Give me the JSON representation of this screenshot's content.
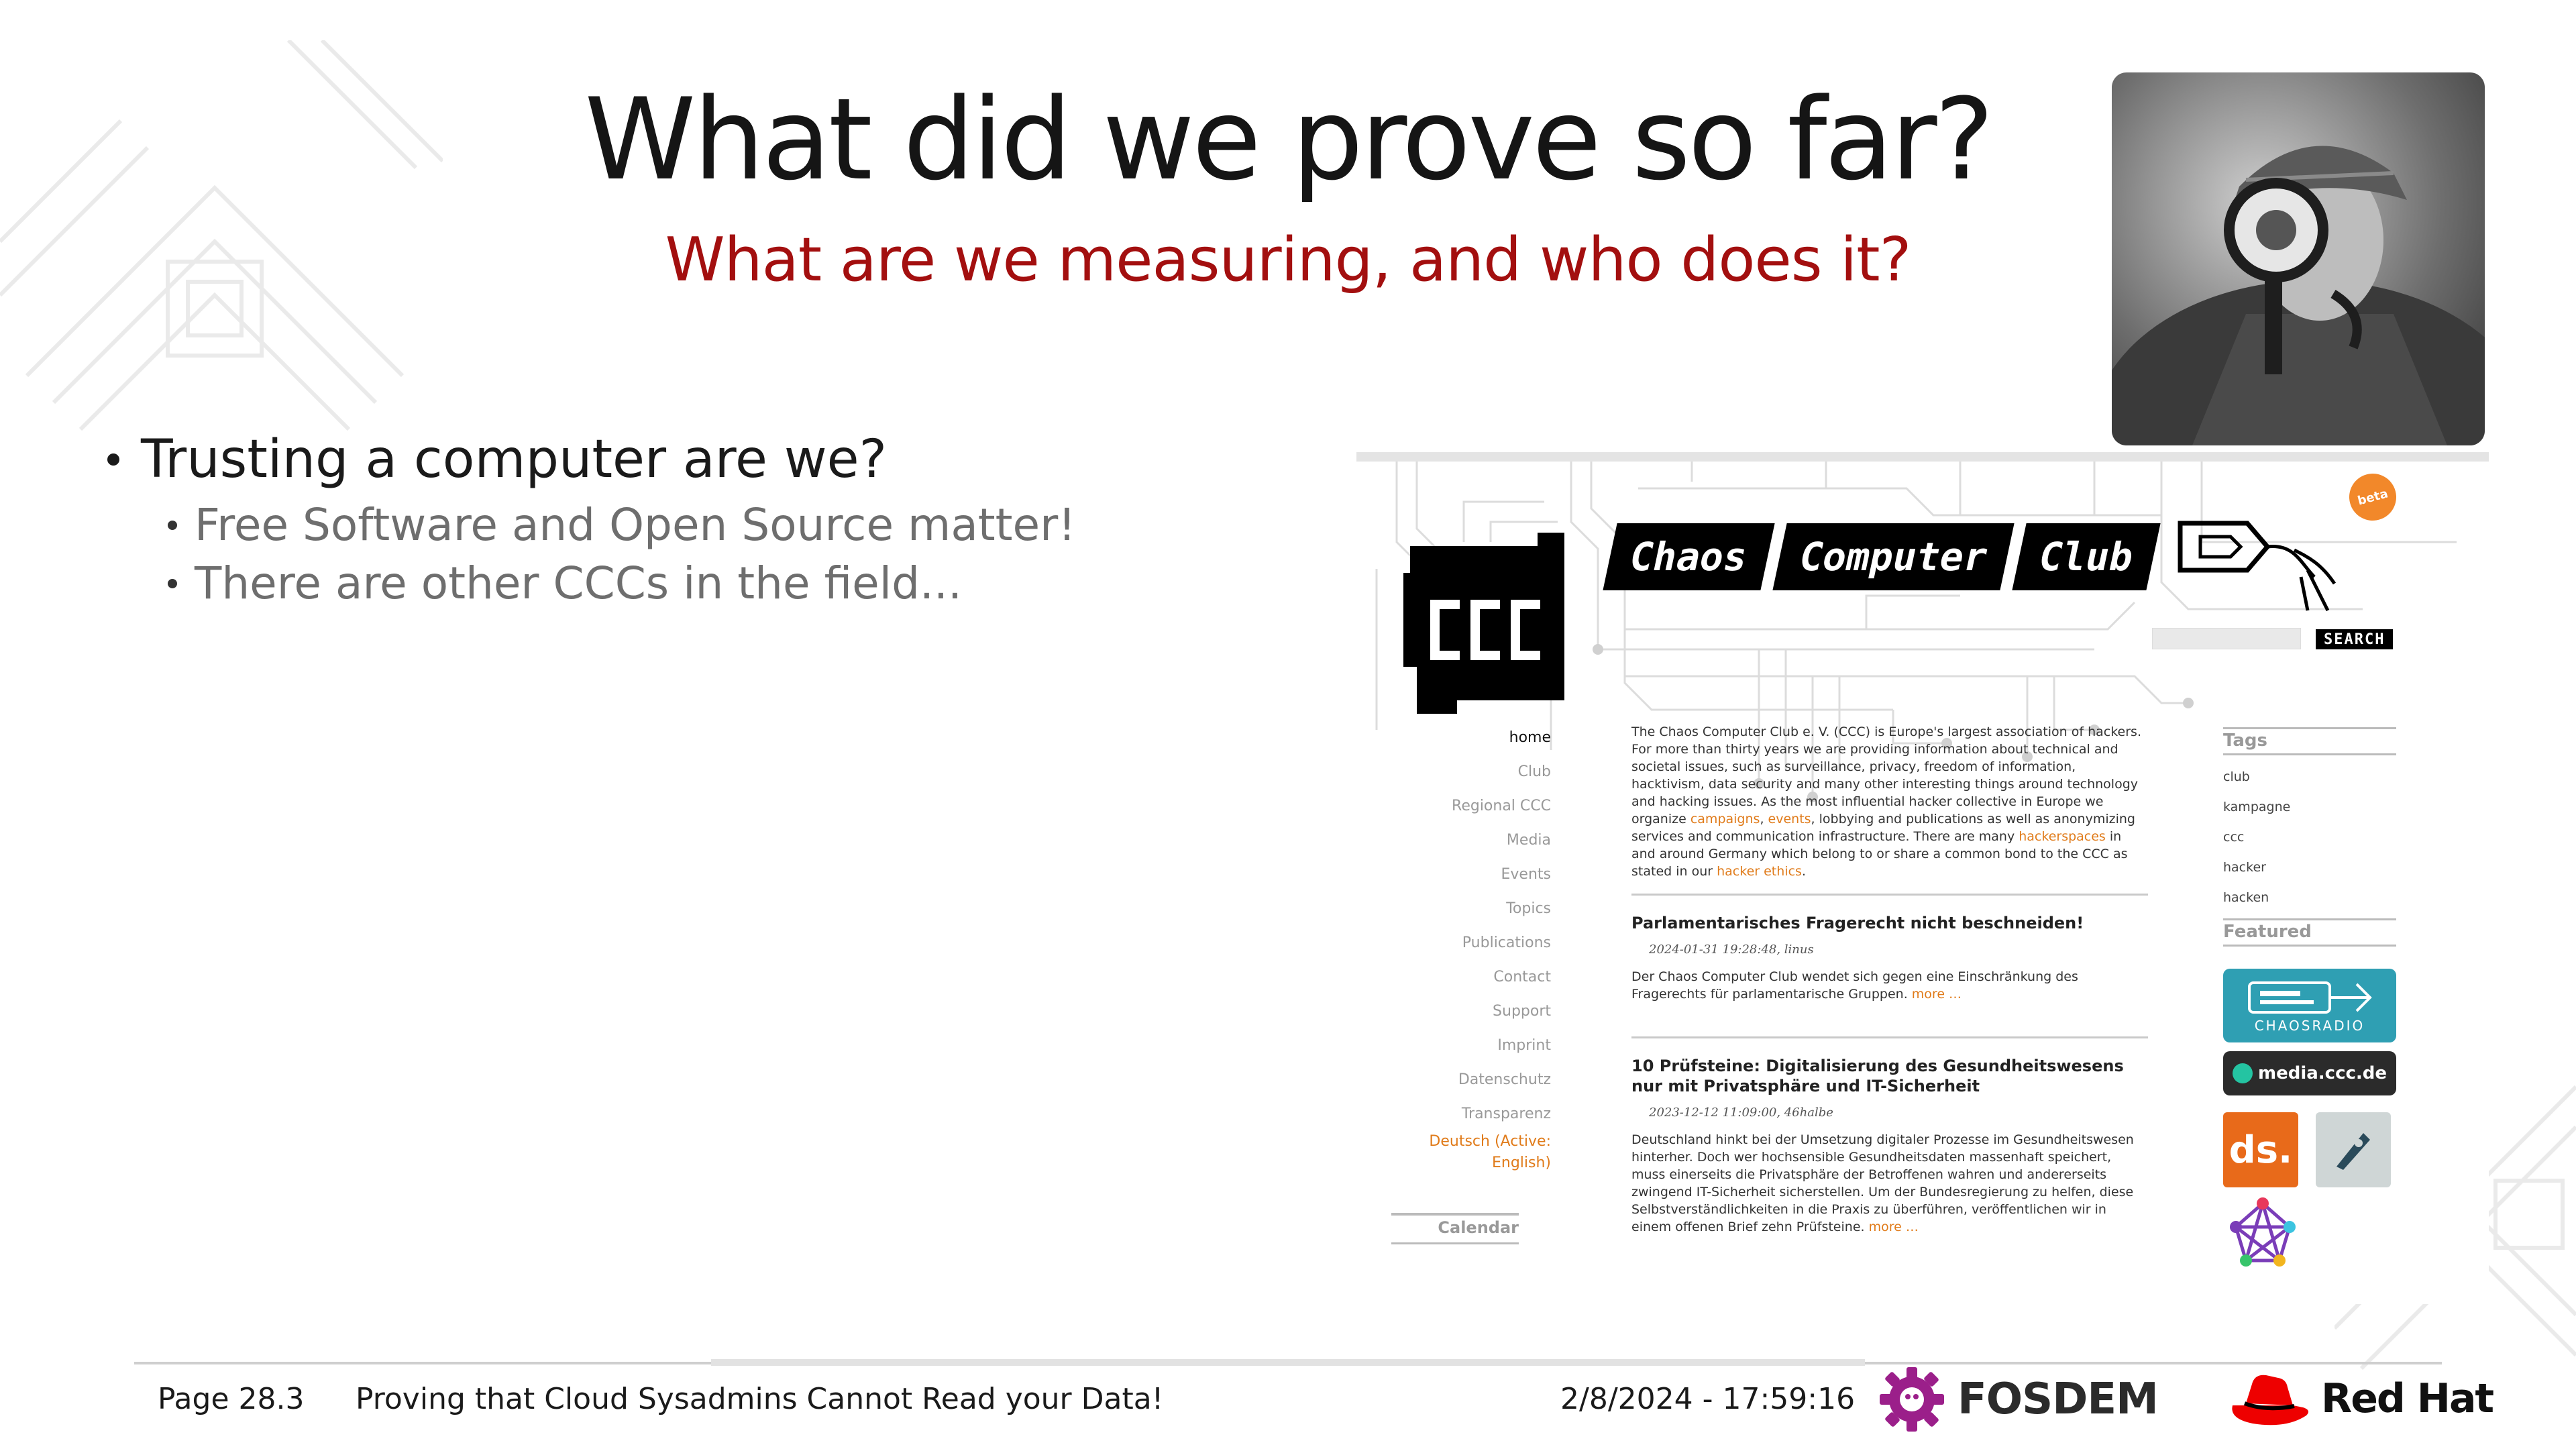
{
  "slide": {
    "title": "What did we prove so far?",
    "subtitle": "What are we measuring, and who does it?",
    "bullets": {
      "main": "Trusting a computer are we?",
      "sub": [
        "Free Software and Open Source matter!",
        "There are other CCCs in the field..."
      ]
    }
  },
  "website": {
    "banner": [
      "Chaos",
      "Computer",
      "Club"
    ],
    "logo_text": "CCC",
    "beta_label": "beta",
    "search_button": "SEARCH",
    "nav": {
      "items": [
        "home",
        "Club",
        "Regional CCC",
        "Media",
        "Events",
        "Topics",
        "Publications",
        "Contact",
        "Support",
        "Imprint",
        "Datenschutz",
        "Transparenz"
      ],
      "language_line1": "Deutsch (Active:",
      "language_line2": "English)",
      "calendar": "Calendar"
    },
    "intro": {
      "part1": "The Chaos Computer Club e. V. (CCC) is Europe's largest association of hackers. For more than thirty years we are providing information about technical and societal issues, such as surveillance, privacy, freedom of information, hacktivism, data security and many other interesting things around technology and hacking issues. As the most influential hacker collective in Europe we organize",
      "link_campaigns": "campaigns",
      "sep1": ",",
      "link_events": "events",
      "part2": ", lobbying and publications as well as anonymizing services and communication infrastructure. There are many",
      "link_hackerspaces": "hackerspaces",
      "part3": "in and around Germany which belong to or share a common bond to the CCC as stated in our",
      "link_ethics": "hacker ethics",
      "end": "."
    },
    "posts": [
      {
        "title": "Parlamentarisches Fragerecht nicht beschneiden!",
        "meta": "2024-01-31 19:28:48, linus",
        "body": "Der Chaos Computer Club wendet sich gegen eine Einschränkung des Fragerechts für parlamentarische Gruppen.",
        "more": "more …"
      },
      {
        "title": "10 Prüfsteine: Digitalisierung des Gesundheitswesens nur mit Privatsphäre und IT-Sicherheit",
        "meta": "2023-12-12 11:09:00, 46halbe",
        "body": "Deutschland hinkt bei der Umsetzung digitaler Prozesse im Gesundheitswesen hinterher. Doch wer hochsensible Gesundheitsdaten massenhaft speichert, muss einerseits die Privatsphäre der Betroffenen wahren und andererseits zwingend IT-Sicherheit sicherstellen. Um der Bundesregierung zu helfen, diese Selbstverständlichkeiten in die Praxis zu überführen, veröffentlichen wir in einem offenen Brief zehn Prüfsteine.",
        "more": "more …"
      }
    ],
    "tags_heading": "Tags",
    "tags": [
      "club",
      "kampagne",
      "ccc",
      "hacker",
      "hacken"
    ],
    "featured_heading": "Featured",
    "featured": {
      "chaosradio": "CHAOSRADIO",
      "media": "media.ccc.de",
      "ds": "ds."
    }
  },
  "footer": {
    "page": "Page 28.3",
    "talk_title": "Proving that Cloud Sysadmins Cannot Read your Data!",
    "datetime": "2/8/2024 - 17:59:16",
    "fosdem": "FOSDEM",
    "redhat": "Red Hat"
  },
  "colors": {
    "subtitle": "#a30f0f",
    "link": "#e07b1a",
    "redhat": "#ee0000",
    "fosdem": "#9b1f8a"
  }
}
